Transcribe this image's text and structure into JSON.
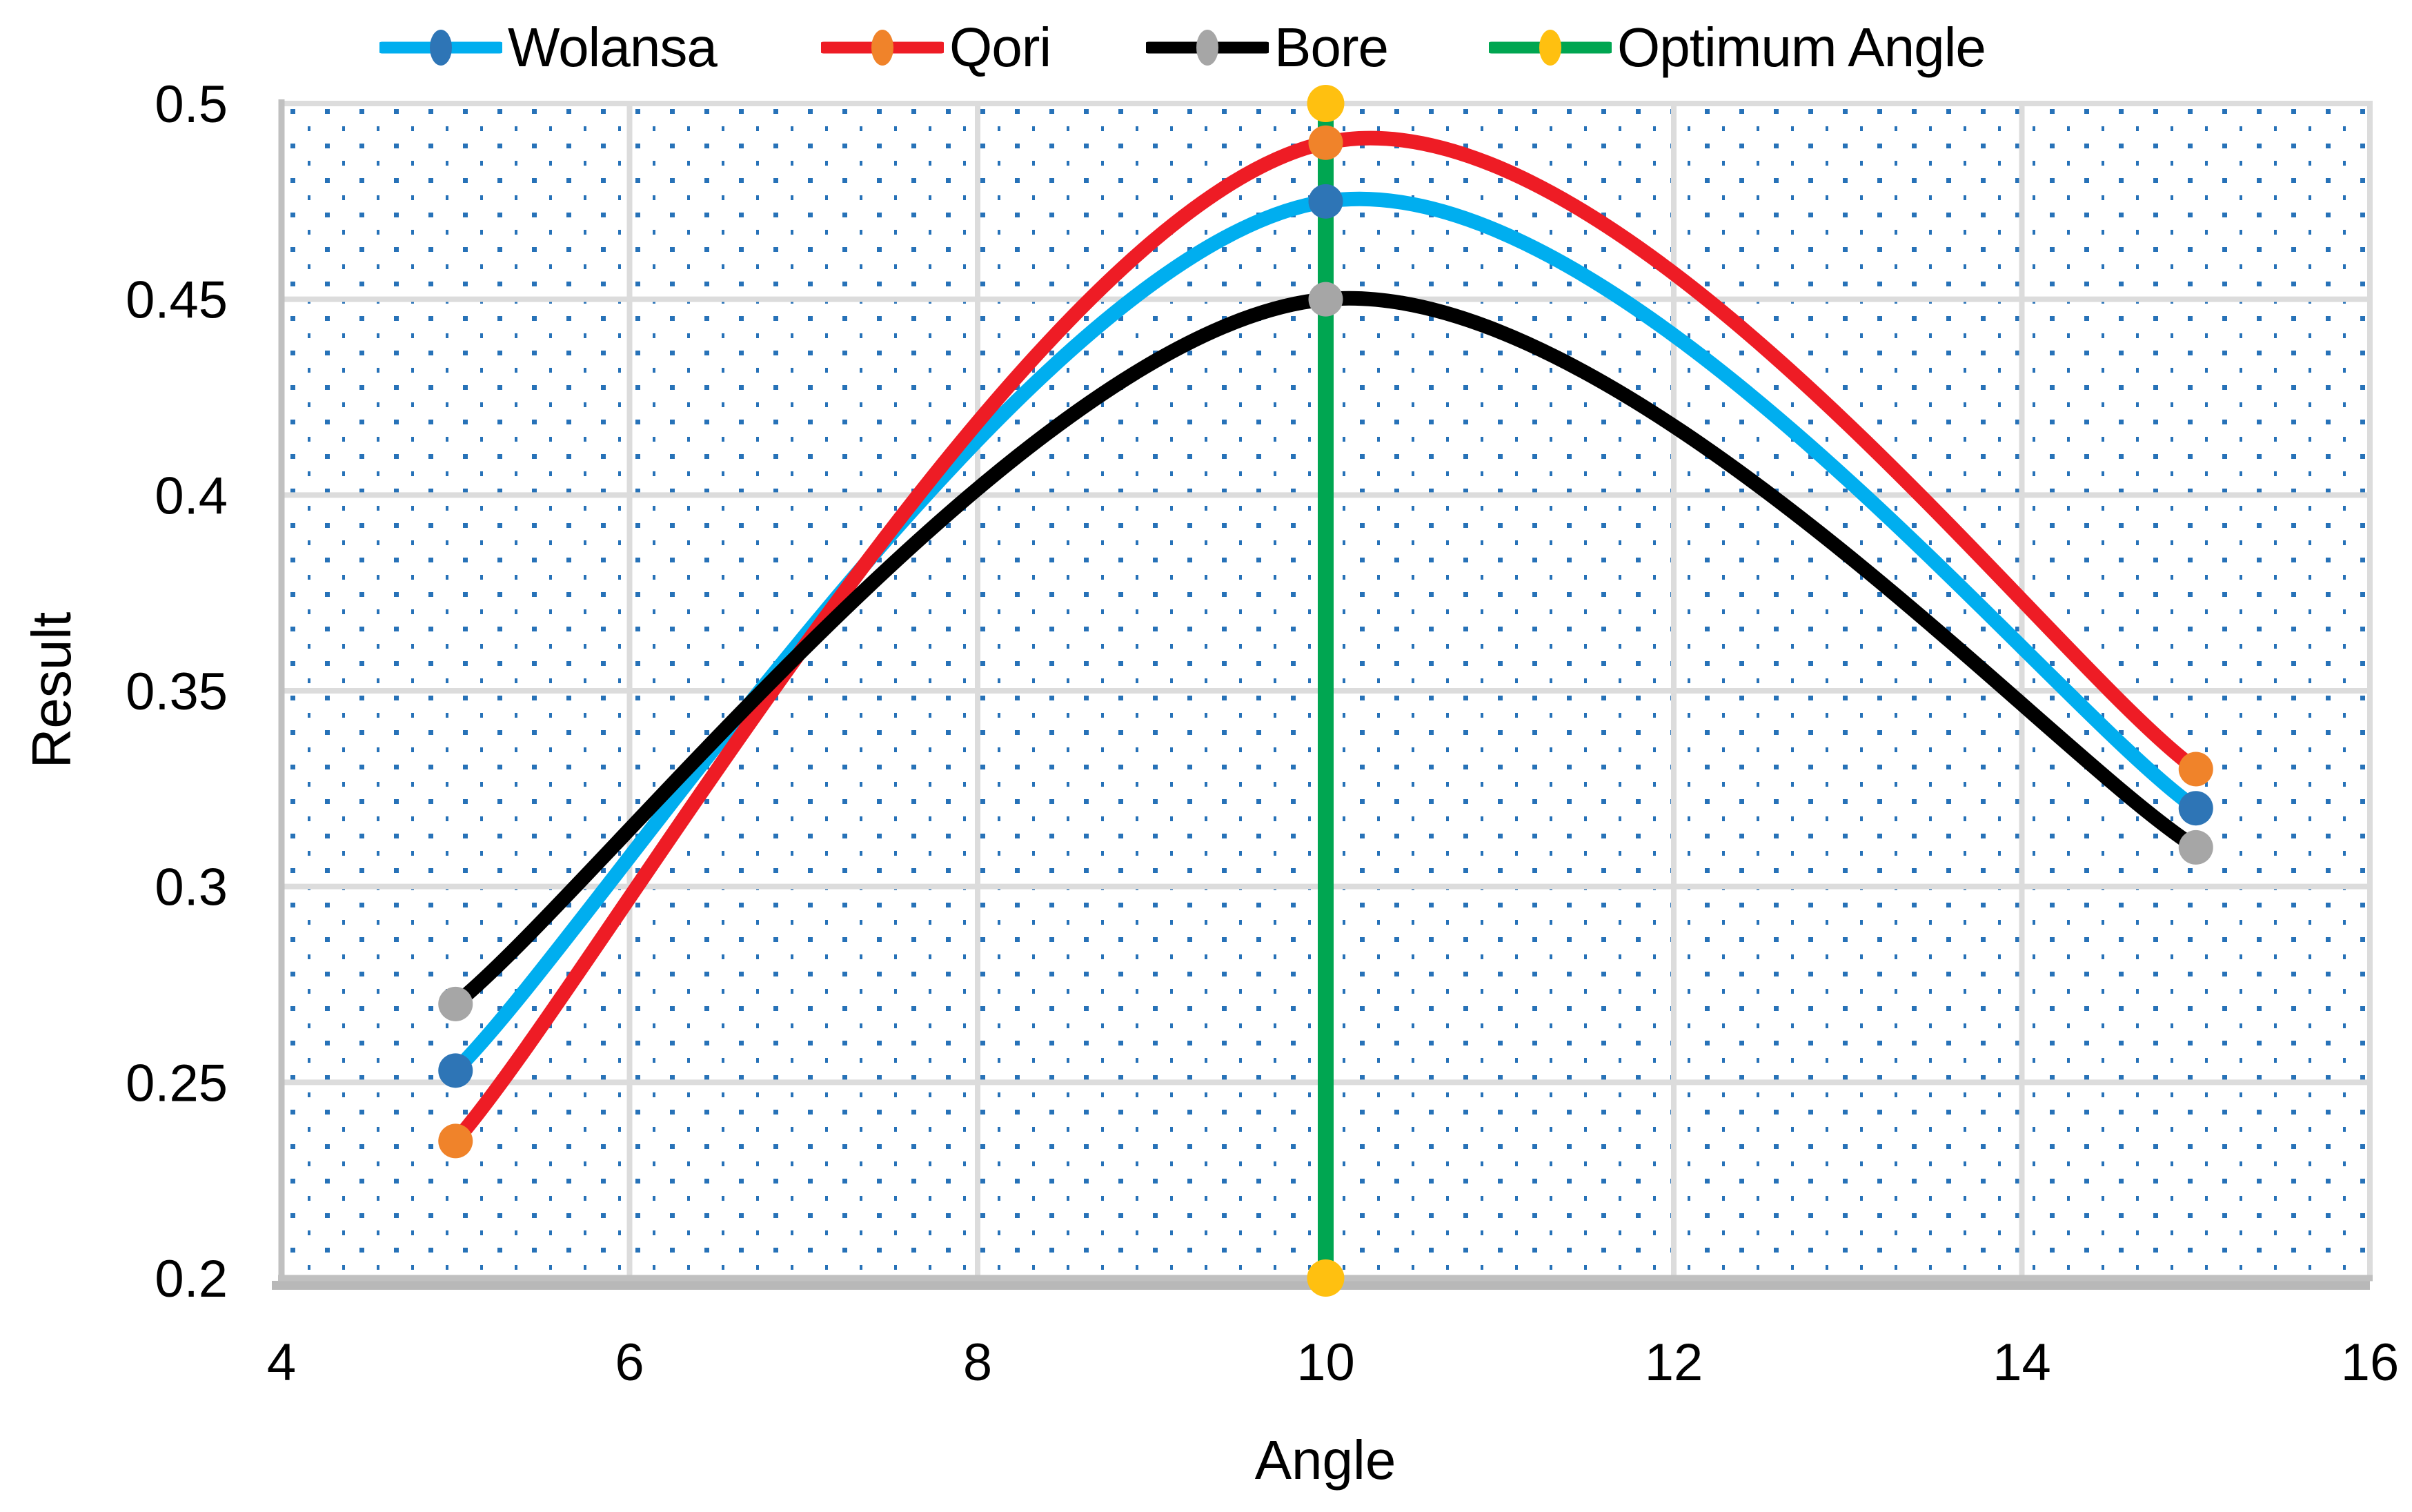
{
  "chart_data": {
    "type": "line",
    "title": "",
    "xlabel": "Angle",
    "ylabel": "Result",
    "xlim": [
      4,
      16
    ],
    "ylim": [
      0.2,
      0.5
    ],
    "x_ticks": [
      4,
      6,
      8,
      10,
      12,
      14,
      16
    ],
    "y_ticks": [
      0.5,
      0.45,
      0.4,
      0.35,
      0.3,
      0.25,
      0.2
    ],
    "x_tick_labels": [
      "4",
      "6",
      "8",
      "10",
      "12",
      "14",
      "16"
    ],
    "y_tick_labels": [
      "0.5",
      "0.45",
      "0.4",
      "0.35",
      "0.3",
      "0.25",
      "0.2"
    ],
    "grid": true,
    "legend_position": "top",
    "series": [
      {
        "name": "Wolansa",
        "kind": "smooth_line",
        "x": [
          5,
          10,
          15
        ],
        "y": [
          0.253,
          0.475,
          0.32
        ],
        "line_color": "#00AEEF",
        "marker_color": "#2E75B6"
      },
      {
        "name": "Qori",
        "kind": "smooth_line",
        "x": [
          5,
          10,
          15
        ],
        "y": [
          0.235,
          0.49,
          0.33
        ],
        "line_color": "#EE1C25",
        "marker_color": "#F0832A"
      },
      {
        "name": "Bore",
        "kind": "smooth_line",
        "x": [
          5,
          10,
          15
        ],
        "y": [
          0.27,
          0.45,
          0.31
        ],
        "line_color": "#000000",
        "marker_color": "#A6A6A6"
      },
      {
        "name": "Optimum Angle",
        "kind": "vertical_line",
        "x": [
          10,
          10
        ],
        "y": [
          0.2,
          0.5
        ],
        "line_color": "#00A651",
        "marker_color": "#FFC010"
      }
    ],
    "plot_area_fill": {
      "pattern": "dotted-grid",
      "dot_color": "#2772B8",
      "background": "#FFFFFF"
    },
    "gridline_color": "#DCDCDC",
    "axis_line_color": "#C0C0C0",
    "shadow_color": "#ABABAB"
  }
}
